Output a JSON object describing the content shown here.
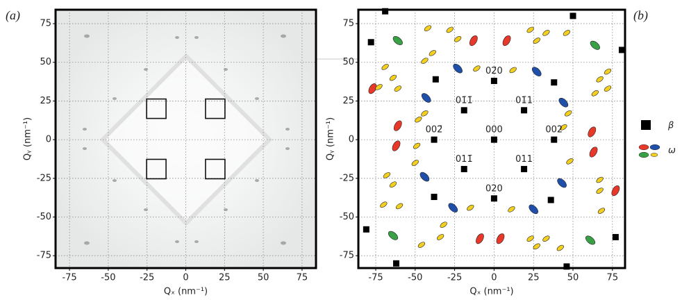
{
  "chart_data": [
    {
      "type": "image",
      "panel_label": "(a)",
      "xlabel": "Qₓ (nm⁻¹)",
      "ylabel": "Qᵧ (nm⁻¹)",
      "xlim": [
        -84,
        84
      ],
      "ylim": [
        -83,
        84
      ],
      "xticks": [
        -75,
        -50,
        -25,
        0,
        25,
        50,
        75
      ],
      "yticks": [
        -75,
        -50,
        -25,
        0,
        25,
        50,
        75
      ],
      "grid": true,
      "boxes": {
        "color": "#111",
        "x": [
          -19,
          19,
          -19,
          19
        ],
        "y": [
          20,
          20,
          -19,
          -19
        ]
      }
    },
    {
      "type": "scatter",
      "panel_label": "(b)",
      "xlabel": "Qₓ (nm⁻¹)",
      "ylabel": "Qᵧ (nm⁻¹)",
      "xlim": [
        -86,
        83
      ],
      "ylim": [
        -83,
        84
      ],
      "xticks": [
        -75,
        -50,
        -25,
        0,
        25,
        50,
        75
      ],
      "yticks": [
        -75,
        -50,
        -25,
        0,
        25,
        50,
        75
      ],
      "grid": true,
      "series": [
        {
          "name": "β",
          "color": "#000000",
          "marker": "square",
          "x": [
            0,
            -19,
            19,
            -38,
            38,
            0,
            0,
            -19,
            19,
            -37,
            38,
            -38,
            36,
            -69,
            -78,
            50,
            81,
            -81,
            -62,
            46,
            77
          ],
          "y": [
            0,
            19,
            19,
            0,
            0,
            38,
            -38,
            -19,
            -19,
            39,
            37,
            -37,
            -39,
            83,
            63,
            80,
            58,
            -58,
            -80,
            -82,
            -63
          ]
        },
        {
          "name": "ω",
          "marker": "ellipse",
          "variants": [
            {
              "color": "#e8382a",
              "angle": -60,
              "x": [
                -13,
                8,
                -61,
                -62,
                62,
                63,
                -9,
                4,
                -77,
                77
              ],
              "y": [
                64,
                64,
                9,
                -4,
                5,
                -8,
                -64,
                -64,
                33,
                -33
              ]
            },
            {
              "color": "#1f4fa8",
              "angle": 45,
              "x": [
                -23,
                27,
                -43,
                44,
                -44,
                43,
                -26,
                25
              ],
              "y": [
                46,
                44,
                27,
                24,
                -24,
                -28,
                -44,
                -45
              ]
            },
            {
              "color": "#3aa046",
              "angle": 40,
              "x": [
                -61,
                64,
                -64,
                61
              ],
              "y": [
                64,
                61,
                -62,
                -65
              ]
            },
            {
              "color": "#f3cf1f",
              "angle": -35,
              "x": [
                -42,
                -28,
                -23,
                23,
                33,
                27,
                46,
                -39,
                -44,
                -11,
                12,
                -69,
                -64,
                72,
                67,
                -73,
                -61,
                72,
                64,
                -48,
                -44,
                47,
                -49,
                44,
                48,
                -50,
                -68,
                -64,
                67,
                67,
                -70,
                -60,
                68,
                -15,
                11,
                -32,
                -34,
                -46,
                23,
                27,
                33,
                42
              ],
              "y": [
                72,
                71,
                65,
                71,
                69,
                64,
                69,
                56,
                51,
                46,
                45,
                47,
                40,
                44,
                39,
                34,
                33,
                33,
                30,
                13,
                17,
                17,
                -4,
                8,
                -14,
                -15,
                -23,
                -29,
                -26,
                -33,
                -42,
                -43,
                -46,
                -44,
                -45,
                -55,
                -63,
                -68,
                -64,
                -69,
                -64,
                -70
              ]
            }
          ]
        }
      ],
      "annotations": [
        {
          "text": "000",
          "x": 0,
          "y": 0
        },
        {
          "text": "02̄0",
          "x": 0,
          "y": 38
        },
        {
          "text": "020",
          "x": 0,
          "y": -38
        },
        {
          "text": "01̄1̄",
          "x": -19,
          "y": 19
        },
        {
          "text": "01̄1",
          "x": 19,
          "y": 19
        },
        {
          "text": "011̄",
          "x": -19,
          "y": -19
        },
        {
          "text": "011",
          "x": 19,
          "y": -19
        },
        {
          "text": "002̄",
          "x": -38,
          "y": 0
        },
        {
          "text": "002",
          "x": 38,
          "y": 0
        }
      ]
    }
  ]
}
